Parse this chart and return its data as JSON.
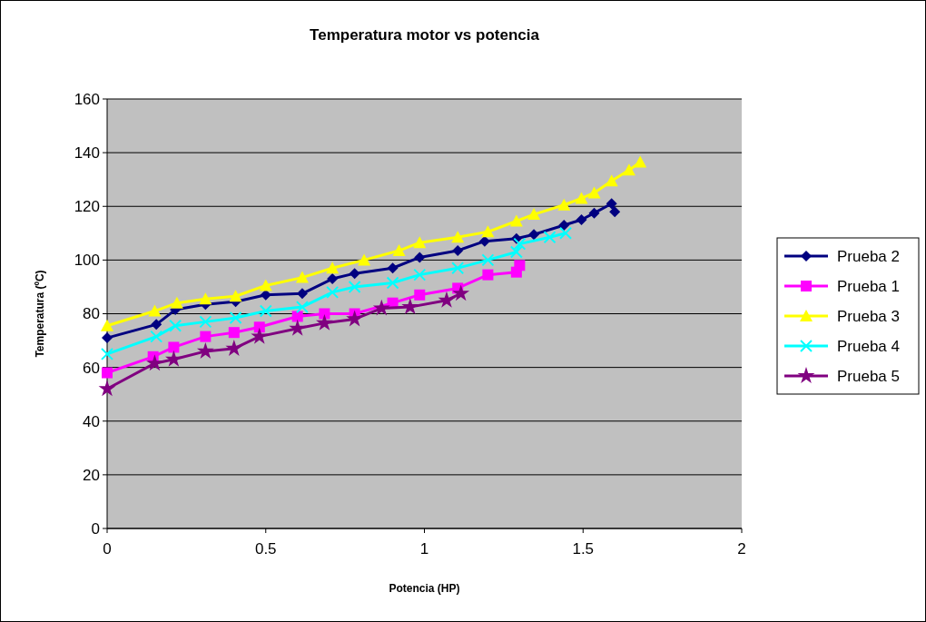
{
  "chart_data": {
    "type": "line",
    "title": "Temperatura motor vs potencia",
    "xlabel": "Potencia (HP)",
    "ylabel": "Temperatura (ºC)",
    "xlim": [
      0,
      2
    ],
    "xticks": [
      0,
      0.5,
      1,
      1.5,
      2
    ],
    "ylim": [
      0,
      160
    ],
    "yticks": [
      0,
      20,
      40,
      60,
      80,
      100,
      120,
      140,
      160
    ],
    "grid": "y",
    "legend": "right",
    "series": [
      {
        "name": "Prueba 2",
        "color": "#000080",
        "marker": "diamond",
        "x": [
          0,
          0.155,
          0.215,
          0.31,
          0.405,
          0.5,
          0.615,
          0.71,
          0.78,
          0.9,
          0.985,
          1.105,
          1.19,
          1.29,
          1.345,
          1.44,
          1.495,
          1.535,
          1.59,
          1.6
        ],
        "values": [
          71,
          76,
          81.5,
          83.5,
          84.5,
          87,
          87.5,
          93,
          95,
          97,
          101,
          103.5,
          107,
          108,
          109.5,
          113,
          115,
          117.5,
          121,
          118
        ]
      },
      {
        "name": "Prueba 1",
        "color": "#ff00ff",
        "marker": "square",
        "x": [
          0,
          0.145,
          0.21,
          0.31,
          0.4,
          0.48,
          0.6,
          0.685,
          0.78,
          0.9,
          0.985,
          1.105,
          1.2,
          1.29,
          1.3
        ],
        "values": [
          58,
          64,
          67.5,
          71.5,
          73,
          75,
          79,
          80,
          80,
          84,
          87,
          89.5,
          94.5,
          95.5,
          98
        ]
      },
      {
        "name": "Prueba 3",
        "color": "#ffff00",
        "marker": "triangle",
        "x": [
          0,
          0.15,
          0.22,
          0.31,
          0.405,
          0.5,
          0.615,
          0.71,
          0.81,
          0.92,
          0.985,
          1.105,
          1.2,
          1.29,
          1.345,
          1.44,
          1.495,
          1.535,
          1.59,
          1.645,
          1.68
        ],
        "values": [
          75.5,
          81,
          84,
          85.5,
          86.5,
          90.5,
          93.5,
          97,
          100,
          103.5,
          106.5,
          108.5,
          110.5,
          114.5,
          117,
          120.5,
          123,
          125,
          129.5,
          133.5,
          136.5
        ]
      },
      {
        "name": "Prueba 4",
        "color": "#00ffff",
        "marker": "cross",
        "x": [
          0,
          0.155,
          0.215,
          0.31,
          0.405,
          0.5,
          0.615,
          0.71,
          0.78,
          0.9,
          0.985,
          1.105,
          1.2,
          1.29,
          1.3,
          1.395,
          1.445
        ],
        "values": [
          65,
          71.5,
          75.5,
          77,
          78.5,
          81,
          82.5,
          88,
          90,
          91.5,
          94.5,
          97,
          100,
          103,
          106,
          108.5,
          110
        ]
      },
      {
        "name": "Prueba 5",
        "color": "#800080",
        "marker": "star",
        "x": [
          0,
          0.15,
          0.21,
          0.31,
          0.4,
          0.48,
          0.6,
          0.685,
          0.78,
          0.865,
          0.955,
          1.07,
          1.115
        ],
        "values": [
          52,
          61.5,
          63,
          66,
          67,
          71.5,
          74.5,
          76.5,
          78,
          82,
          82.5,
          85,
          87.5
        ]
      }
    ]
  }
}
